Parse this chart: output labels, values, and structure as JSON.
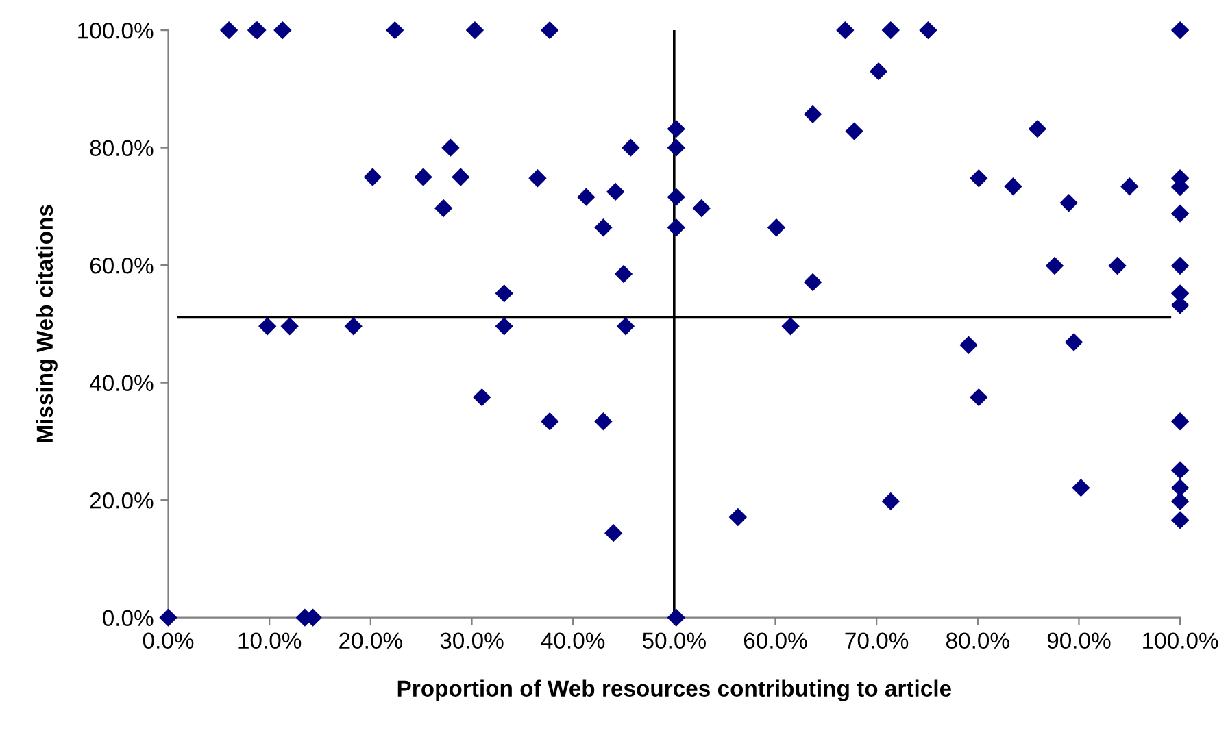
{
  "chart_data": {
    "type": "scatter",
    "xlabel": "Proportion of Web resources contributing to article",
    "ylabel": "Missing Web citations",
    "marker": "diamond",
    "grid": false,
    "series": [
      {
        "color": "#000080",
        "x": [
          6.0,
          8.7,
          8.8,
          11.3,
          22.4,
          30.3,
          37.7,
          66.9,
          71.4,
          75.1,
          100,
          20.2,
          27.9,
          25.2,
          28.9,
          27.2,
          9.8,
          12.0,
          18.3,
          31.0,
          33.2,
          33.2,
          0,
          13.5,
          14.3,
          36.5,
          41.3,
          44.2,
          45.7,
          43.0,
          45.0,
          45.2,
          37.7,
          43.0,
          44.0,
          50.2,
          50.2,
          50.2,
          50.2,
          50.2,
          52.7,
          60.1,
          63.7,
          63.7,
          61.5,
          56.3,
          67.8,
          70.2,
          85.9,
          80.1,
          83.5,
          89.0,
          95.0,
          87.6,
          93.8,
          79.1,
          89.5,
          80.1,
          90.2,
          71.4,
          100,
          100,
          100,
          100,
          100,
          100,
          100,
          100,
          100,
          100,
          100
        ],
        "values": [
          100,
          100,
          100,
          100,
          100,
          100,
          100,
          100,
          100,
          100,
          100,
          75,
          80,
          75,
          75,
          69.7,
          49.6,
          49.6,
          49.6,
          37.5,
          55.2,
          49.6,
          0,
          0,
          0,
          74.8,
          71.6,
          72.5,
          80,
          66.4,
          58.5,
          49.6,
          33.4,
          33.4,
          14.4,
          83.2,
          80,
          71.6,
          66.4,
          0,
          69.7,
          66.4,
          85.7,
          57.1,
          49.6,
          17.1,
          82.8,
          93,
          83.2,
          74.8,
          73.4,
          70.6,
          73.4,
          59.9,
          59.9,
          46.4,
          46.9,
          37.5,
          22.1,
          19.8,
          74.8,
          73.3,
          68.8,
          59.9,
          55.2,
          53.2,
          33.4,
          25.1,
          22.1,
          19.8,
          16.6
        ]
      }
    ],
    "xlim": [
      0,
      100
    ],
    "ylim": [
      0,
      100
    ],
    "xticks": [
      {
        "value": 0,
        "label": "0.0%"
      },
      {
        "value": 10,
        "label": "10.0%"
      },
      {
        "value": 20,
        "label": "20.0%"
      },
      {
        "value": 30,
        "label": "30.0%"
      },
      {
        "value": 40,
        "label": "40.0%"
      },
      {
        "value": 50,
        "label": "50.0%"
      },
      {
        "value": 60,
        "label": "60.0%"
      },
      {
        "value": 70,
        "label": "70.0%"
      },
      {
        "value": 80,
        "label": "80.0%"
      },
      {
        "value": 90,
        "label": "90.0%"
      },
      {
        "value": 100,
        "label": "100.0%"
      }
    ],
    "yticks": [
      {
        "value": 0,
        "label": "0.0%"
      },
      {
        "value": 20,
        "label": "20.0%"
      },
      {
        "value": 40,
        "label": "40.0%"
      },
      {
        "value": 60,
        "label": "60.0%"
      },
      {
        "value": 80,
        "label": "80.0%"
      },
      {
        "value": 100,
        "label": "100.0%"
      }
    ],
    "ref_lines": [
      {
        "axis": "x",
        "value": 50,
        "color": "#000000"
      },
      {
        "axis": "y",
        "value": 51.1,
        "color": "#000000"
      }
    ]
  }
}
